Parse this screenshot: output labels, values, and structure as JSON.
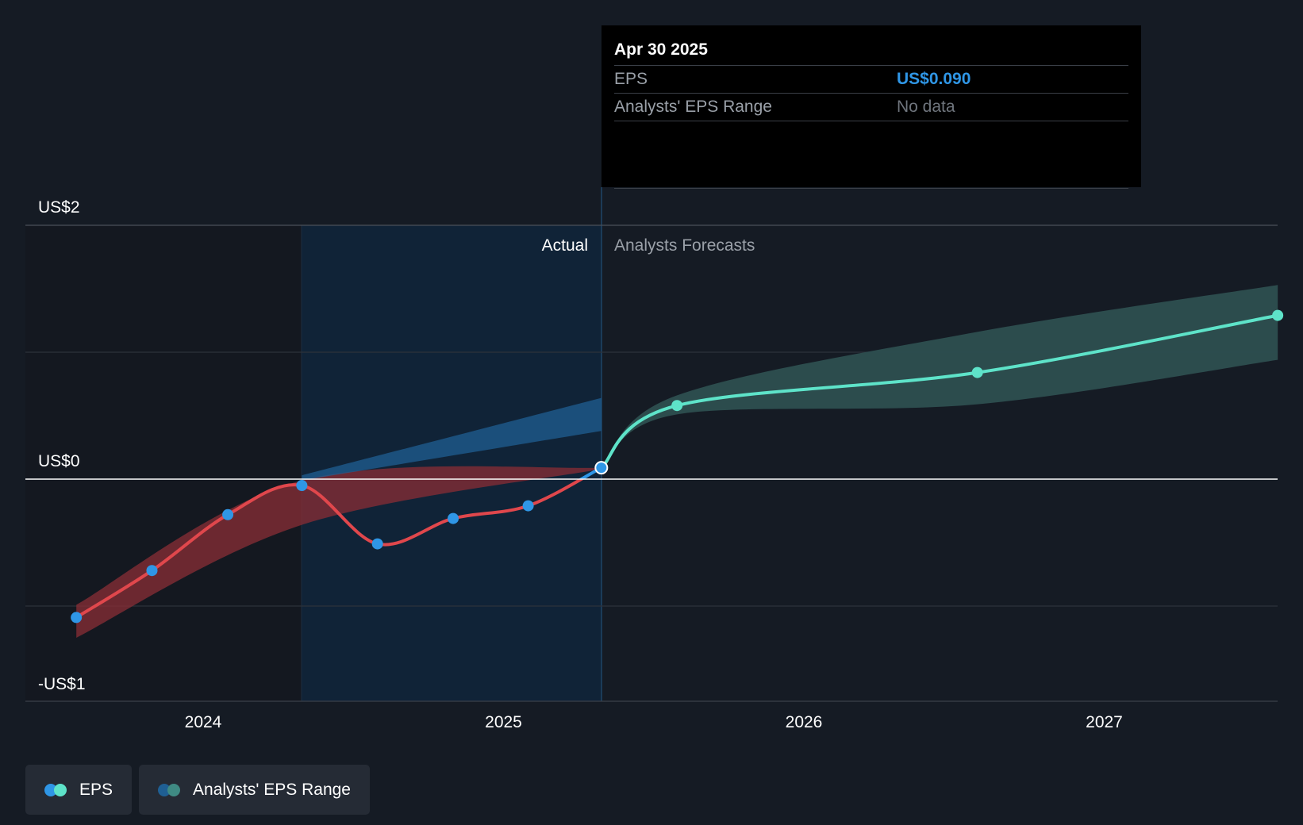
{
  "chart_data": {
    "type": "line",
    "x_ticks": [
      "2024",
      "2025",
      "2026",
      "2027"
    ],
    "y_ticks": [
      "US$2",
      "US$0",
      "-US$1"
    ],
    "ylim": [
      -1.4,
      2
    ],
    "divider_labels": {
      "actual": "Actual",
      "forecast": "Analysts Forecasts"
    },
    "series": [
      {
        "name": "EPS",
        "kind": "actual",
        "points": [
          {
            "x": "2023-07-31",
            "y": -1.09
          },
          {
            "x": "2023-10-31",
            "y": -0.72
          },
          {
            "x": "2024-01-31",
            "y": -0.28
          },
          {
            "x": "2024-04-30",
            "y": -0.05
          },
          {
            "x": "2024-07-31",
            "y": -0.51
          },
          {
            "x": "2024-10-31",
            "y": -0.31
          },
          {
            "x": "2025-01-31",
            "y": -0.21
          },
          {
            "x": "2025-04-30",
            "y": 0.09
          }
        ]
      },
      {
        "name": "EPS",
        "kind": "forecast",
        "points": [
          {
            "x": "2025-04-30",
            "y": 0.09
          },
          {
            "x": "2025-07-31",
            "y": 0.58
          },
          {
            "x": "2026-07-31",
            "y": 0.84
          },
          {
            "x": "2027-07-31",
            "y": 1.29
          }
        ]
      }
    ],
    "range_bands": [
      {
        "kind": "past-low",
        "points": [
          {
            "x": "2023-07-31",
            "low": -1.25,
            "high": -0.99
          },
          {
            "x": "2024-04-30",
            "low": -0.36,
            "high": -0.01
          },
          {
            "x": "2025-04-30",
            "low": 0.08,
            "high": 0.09
          }
        ]
      },
      {
        "kind": "past-high",
        "points": [
          {
            "x": "2024-04-30",
            "low": -0.01,
            "high": 0.03
          },
          {
            "x": "2025-04-30",
            "low": 0.38,
            "high": 0.64
          }
        ]
      },
      {
        "kind": "forecast",
        "points": [
          {
            "x": "2025-04-30",
            "low": 0.09,
            "high": 0.09
          },
          {
            "x": "2025-07-31",
            "low": 0.51,
            "high": 0.66
          },
          {
            "x": "2026-07-31",
            "low": 0.59,
            "high": 1.16
          },
          {
            "x": "2027-07-31",
            "low": 0.94,
            "high": 1.53
          }
        ]
      }
    ],
    "tooltip": {
      "date": "Apr 30 2025",
      "eps_label": "EPS",
      "eps_value": "US$0.090",
      "range_label": "Analysts' EPS Range",
      "range_value": "No data"
    },
    "legend": [
      {
        "label": "EPS"
      },
      {
        "label": "Analysts' EPS Range"
      }
    ],
    "colors": {
      "background": "#151b24",
      "eps_negative": "#e0474c",
      "eps_positive_actual": "#2f96e6",
      "eps_forecast": "#5ee3c9",
      "band_negative": "#8a2e35",
      "band_positive": "#1f5f93",
      "band_forecast": "#2d4f50",
      "highlight": "#102337",
      "marker": "#2f96e6"
    }
  }
}
